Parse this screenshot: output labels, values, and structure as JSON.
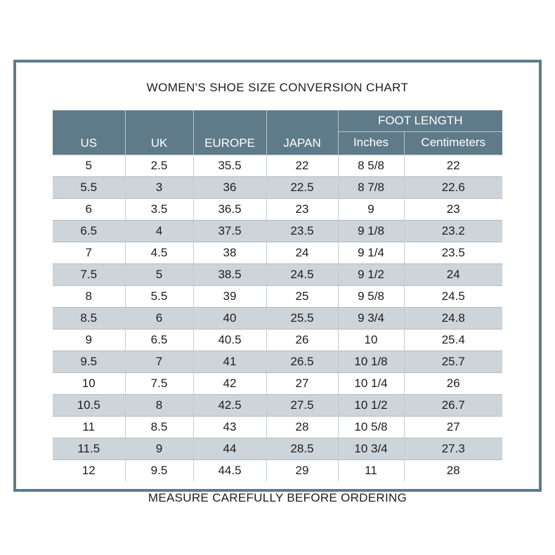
{
  "title": "WOMEN'S SHOE SIZE CONVERSION CHART",
  "footer_note": "MEASURE CAREFULLY BEFORE ORDERING",
  "colors": {
    "frame_border": "#5f7b8a",
    "header_bg": "#5f7b8a",
    "stripe_bg": "#cdd4da",
    "row_line": "#b3bac0",
    "col_line": "#c4cbd1",
    "header_text": "#ffffff",
    "body_text": "#1d1d1d"
  },
  "chart_data": {
    "type": "table",
    "title": "WOMEN'S SHOE SIZE CONVERSION CHART",
    "foot_length_label": "FOOT LENGTH",
    "columns": [
      {
        "key": "us",
        "label": "US"
      },
      {
        "key": "uk",
        "label": "UK"
      },
      {
        "key": "europe",
        "label": "EUROPE"
      },
      {
        "key": "japan",
        "label": "JAPAN"
      },
      {
        "key": "inches",
        "label": "Inches"
      },
      {
        "key": "centimeters",
        "label": "Centimeters"
      }
    ],
    "rows": [
      {
        "us": "5",
        "uk": "2.5",
        "europe": "35.5",
        "japan": "22",
        "inches": "8 5/8",
        "centimeters": "22"
      },
      {
        "us": "5.5",
        "uk": "3",
        "europe": "36",
        "japan": "22.5",
        "inches": "8 7/8",
        "centimeters": "22.6"
      },
      {
        "us": "6",
        "uk": "3.5",
        "europe": "36.5",
        "japan": "23",
        "inches": "9",
        "centimeters": "23"
      },
      {
        "us": "6.5",
        "uk": "4",
        "europe": "37.5",
        "japan": "23.5",
        "inches": "9 1/8",
        "centimeters": "23.2"
      },
      {
        "us": "7",
        "uk": "4.5",
        "europe": "38",
        "japan": "24",
        "inches": "9 1/4",
        "centimeters": "23.5"
      },
      {
        "us": "7.5",
        "uk": "5",
        "europe": "38.5",
        "japan": "24.5",
        "inches": "9 1/2",
        "centimeters": "24"
      },
      {
        "us": "8",
        "uk": "5.5",
        "europe": "39",
        "japan": "25",
        "inches": "9 5/8",
        "centimeters": "24.5"
      },
      {
        "us": "8.5",
        "uk": "6",
        "europe": "40",
        "japan": "25.5",
        "inches": "9 3/4",
        "centimeters": "24.8"
      },
      {
        "us": "9",
        "uk": "6.5",
        "europe": "40.5",
        "japan": "26",
        "inches": "10",
        "centimeters": "25.4"
      },
      {
        "us": "9.5",
        "uk": "7",
        "europe": "41",
        "japan": "26.5",
        "inches": "10 1/8",
        "centimeters": "25.7"
      },
      {
        "us": "10",
        "uk": "7.5",
        "europe": "42",
        "japan": "27",
        "inches": "10 1/4",
        "centimeters": "26"
      },
      {
        "us": "10.5",
        "uk": "8",
        "europe": "42.5",
        "japan": "27.5",
        "inches": "10 1/2",
        "centimeters": "26.7"
      },
      {
        "us": "11",
        "uk": "8.5",
        "europe": "43",
        "japan": "28",
        "inches": "10 5/8",
        "centimeters": "27"
      },
      {
        "us": "11.5",
        "uk": "9",
        "europe": "44",
        "japan": "28.5",
        "inches": "10 3/4",
        "centimeters": "27.3"
      },
      {
        "us": "12",
        "uk": "9.5",
        "europe": "44.5",
        "japan": "29",
        "inches": "11",
        "centimeters": "28"
      }
    ]
  }
}
